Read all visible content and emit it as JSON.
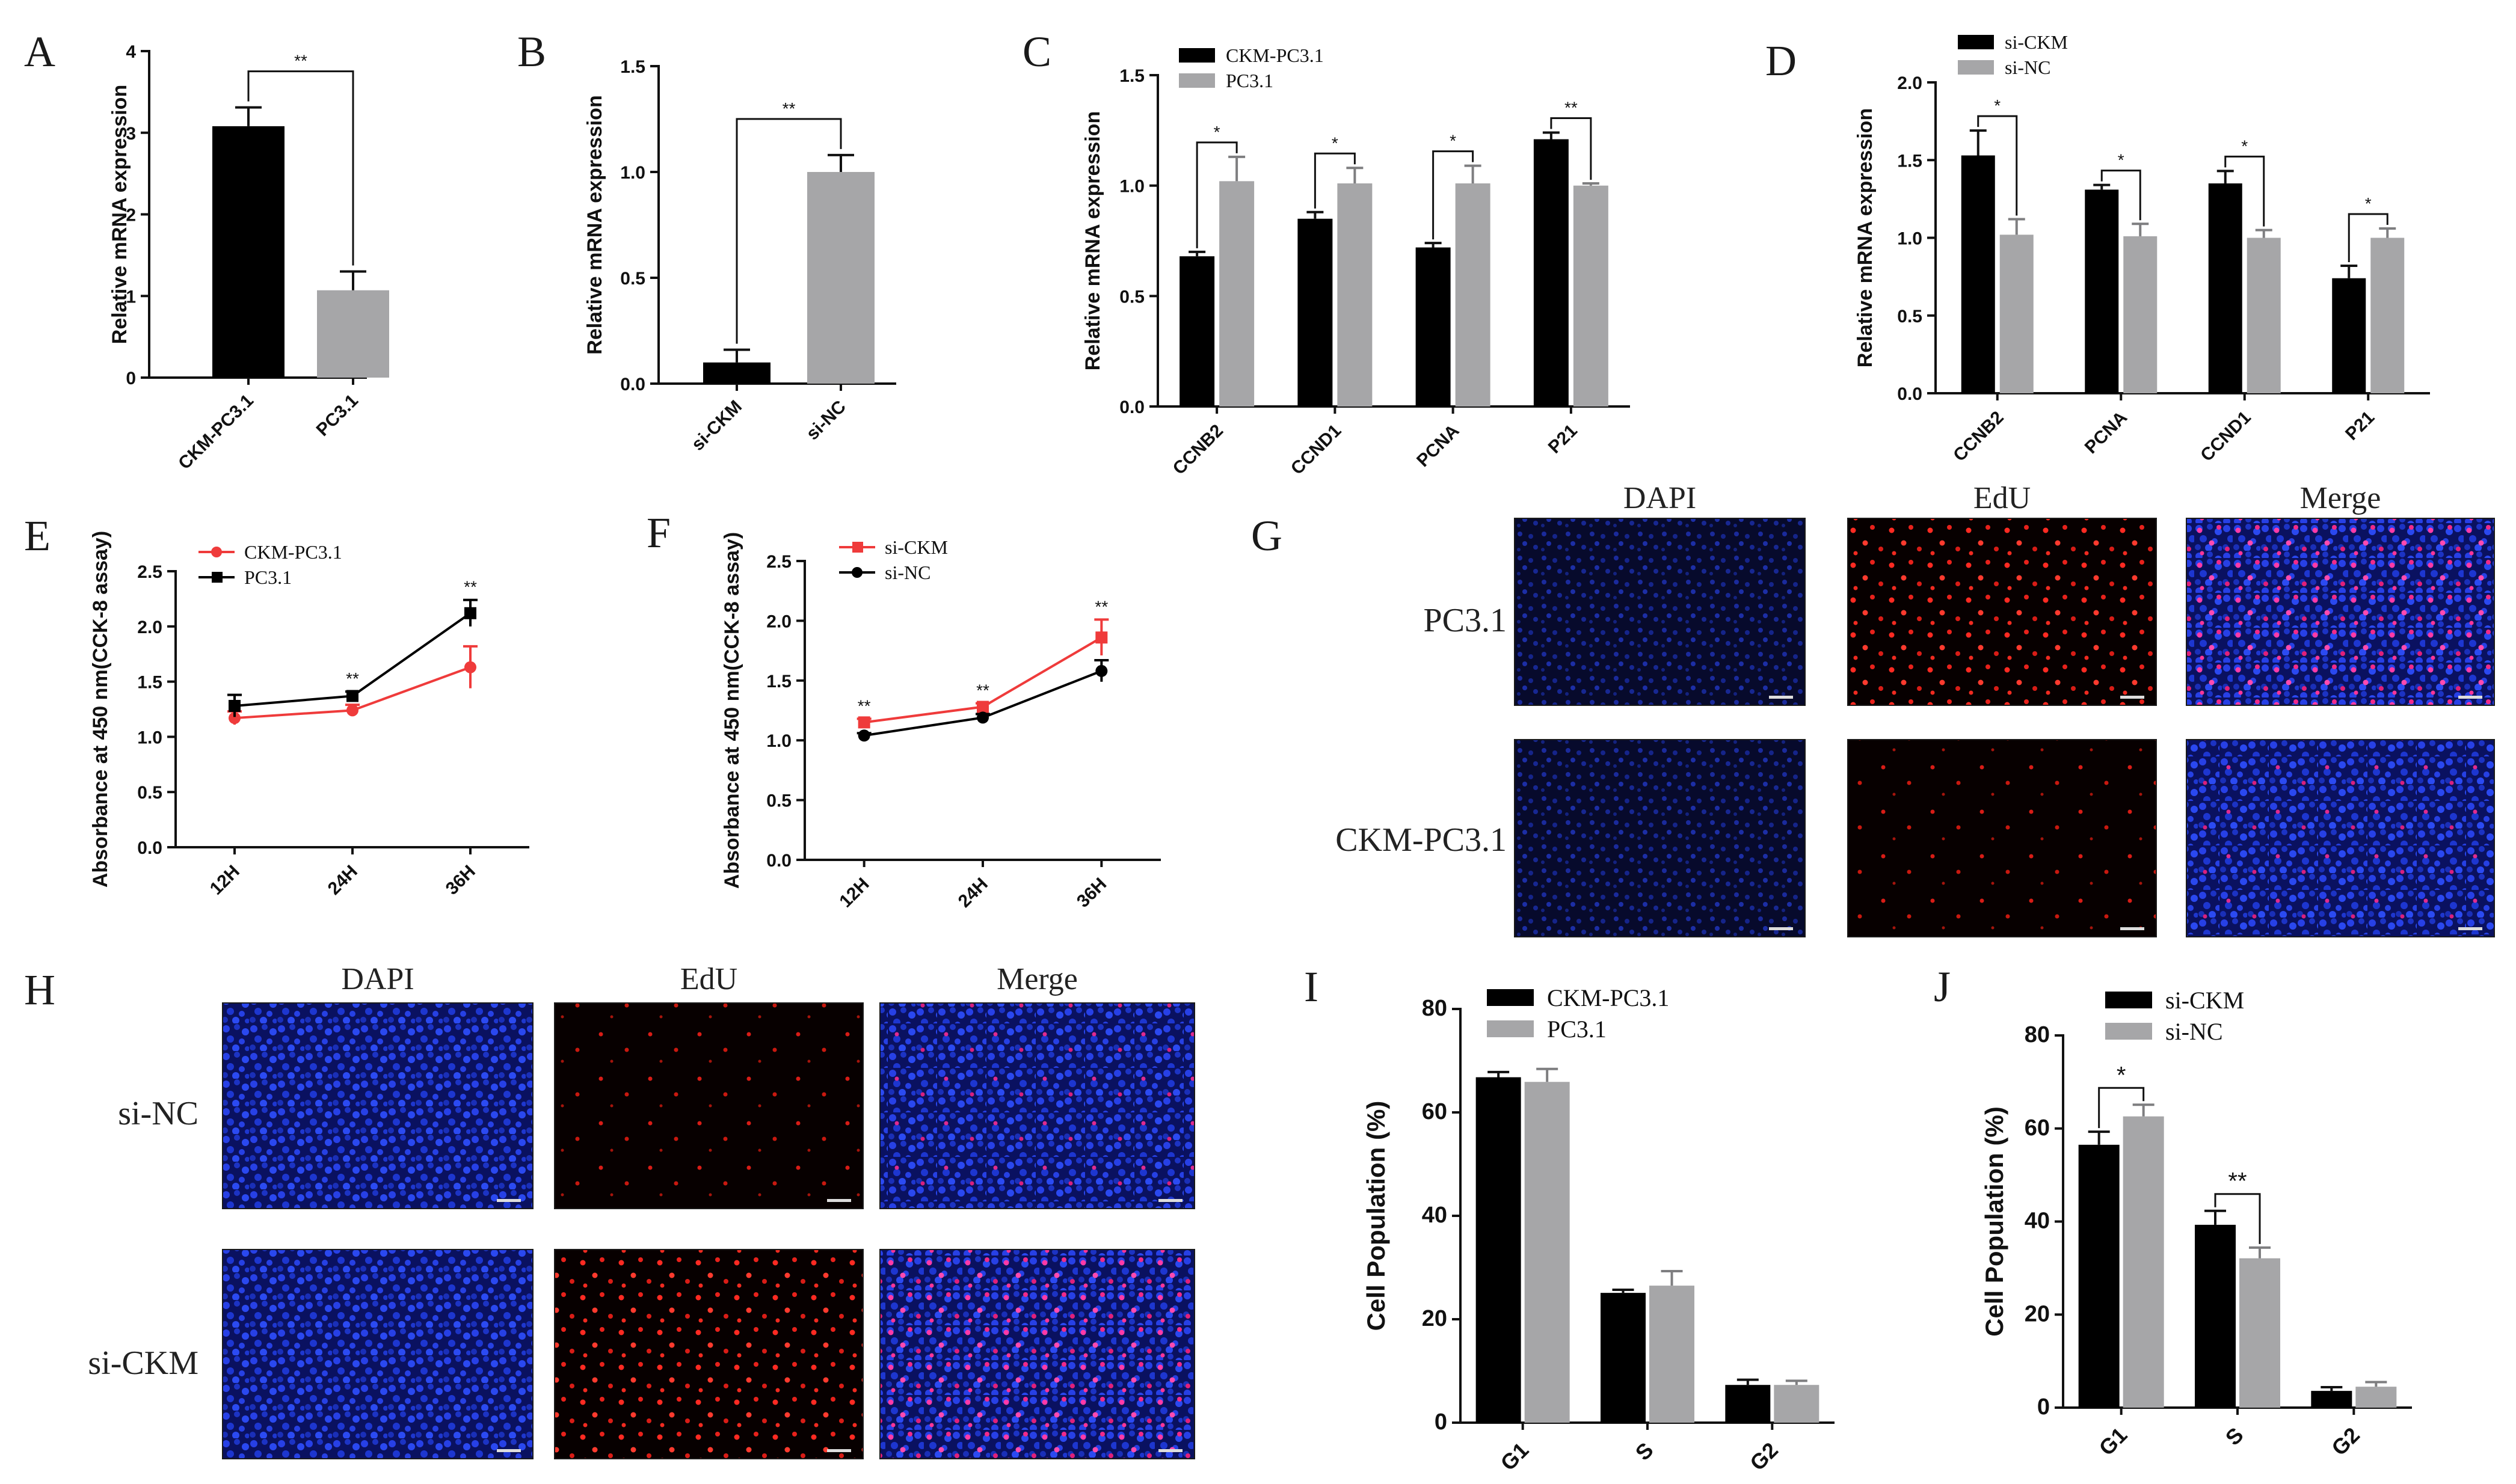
{
  "colors": {
    "black": "#000000",
    "gray": "#a6a6a8",
    "red": "#ef3b3b",
    "dapi": "#1f3ad8",
    "edu": "#e0201c",
    "panelbg": "#0a0a14"
  },
  "chart_data": [
    {
      "id": "A",
      "panel_label": "A",
      "type": "bar",
      "ylabel": "Relative mRNA expression",
      "ylim": [
        0,
        4
      ],
      "yticks": [
        "0",
        "1",
        "2",
        "3",
        "4"
      ],
      "categories": [
        "CKM-PC3.1",
        "PC3.1"
      ],
      "values": [
        3.08,
        1.07
      ],
      "errors": [
        0.23,
        0.23
      ],
      "colors": [
        "black",
        "gray"
      ],
      "significance": [
        {
          "from": 0,
          "to": 1,
          "label": "**"
        }
      ]
    },
    {
      "id": "B",
      "panel_label": "B",
      "type": "bar",
      "ylabel": "Relative mRNA expression",
      "ylim": [
        0,
        1.5
      ],
      "yticks": [
        "0.0",
        "0.5",
        "1.0",
        "1.5"
      ],
      "categories": [
        "si-CKM",
        "si-NC"
      ],
      "values": [
        0.1,
        1.0
      ],
      "errors": [
        0.06,
        0.08
      ],
      "colors": [
        "black",
        "gray"
      ],
      "significance": [
        {
          "from": 0,
          "to": 1,
          "label": "**"
        }
      ]
    },
    {
      "id": "C",
      "panel_label": "C",
      "type": "bar",
      "ylabel": "Relative mRNA expression",
      "ylim": [
        0,
        1.5
      ],
      "yticks": [
        "0.0",
        "0.5",
        "1.0",
        "1.5"
      ],
      "categories": [
        "CCNB2",
        "CCND1",
        "PCNA",
        "P21"
      ],
      "series": [
        {
          "name": "CKM-PC3.1",
          "color": "black",
          "values": [
            0.68,
            0.85,
            0.72,
            1.21
          ],
          "errors": [
            0.02,
            0.03,
            0.02,
            0.03
          ]
        },
        {
          "name": "PC3.1",
          "color": "gray",
          "values": [
            1.02,
            1.01,
            1.01,
            1.0
          ],
          "errors": [
            0.11,
            0.07,
            0.08,
            0.01
          ]
        }
      ],
      "significance": [
        "*",
        "*",
        "*",
        "**"
      ]
    },
    {
      "id": "D",
      "panel_label": "D",
      "type": "bar",
      "ylabel": "Relative mRNA expression",
      "ylim": [
        0,
        2.0
      ],
      "yticks": [
        "0.0",
        "0.5",
        "1.0",
        "1.5",
        "2.0"
      ],
      "categories": [
        "CCNB2",
        "PCNA",
        "CCND1",
        "P21"
      ],
      "series": [
        {
          "name": "si-CKM",
          "color": "black",
          "values": [
            1.53,
            1.31,
            1.35,
            0.74
          ],
          "errors": [
            0.16,
            0.03,
            0.08,
            0.08
          ]
        },
        {
          "name": "si-NC",
          "color": "gray",
          "values": [
            1.02,
            1.01,
            1.0,
            1.0
          ],
          "errors": [
            0.1,
            0.08,
            0.05,
            0.06
          ]
        }
      ],
      "significance": [
        "*",
        "*",
        "*",
        "*"
      ]
    },
    {
      "id": "E",
      "panel_label": "E",
      "type": "line",
      "ylabel": "Absorbance at 450 nm(CCK-8 assay)",
      "ylim": [
        0,
        2.5
      ],
      "yticks": [
        "0.0",
        "0.5",
        "1.0",
        "1.5",
        "2.0",
        "2.5"
      ],
      "x": [
        "12H",
        "24H",
        "36H"
      ],
      "series": [
        {
          "name": "CKM-PC3.1",
          "color": "red",
          "marker": "circle",
          "values": [
            1.17,
            1.24,
            1.63
          ],
          "errors": [
            0.06,
            0.05,
            0.19
          ]
        },
        {
          "name": "PC3.1",
          "color": "black",
          "marker": "square",
          "values": [
            1.28,
            1.37,
            2.12
          ],
          "errors": [
            0.1,
            0.04,
            0.12
          ]
        }
      ],
      "significance": [
        "",
        "**",
        "**"
      ]
    },
    {
      "id": "F",
      "panel_label": "F",
      "type": "line",
      "ylabel": "Absorbance at 450 nm(CCK-8 assay)",
      "ylim": [
        0,
        2.5
      ],
      "yticks": [
        "0.0",
        "0.5",
        "1.0",
        "1.5",
        "2.0",
        "2.5"
      ],
      "x": [
        "12H",
        "24H",
        "36H"
      ],
      "series": [
        {
          "name": "si-CKM",
          "color": "red",
          "marker": "square",
          "values": [
            1.15,
            1.28,
            1.86
          ],
          "errors": [
            0.03,
            0.03,
            0.15
          ]
        },
        {
          "name": "si-NC",
          "color": "black",
          "marker": "circle",
          "values": [
            1.04,
            1.19,
            1.58
          ],
          "errors": [
            0.02,
            0.03,
            0.09
          ]
        }
      ],
      "significance": [
        "**",
        "**",
        "**"
      ]
    },
    {
      "id": "I",
      "panel_label": "I",
      "type": "bar",
      "ylabel": "Cell Population (%)",
      "ylim": [
        0,
        80
      ],
      "yticks": [
        "0",
        "20",
        "40",
        "60",
        "80"
      ],
      "categories": [
        "G1",
        "S",
        "G2"
      ],
      "series": [
        {
          "name": "CKM-PC3.1",
          "color": "black",
          "values": [
            66.8,
            25.1,
            7.3
          ],
          "errors": [
            1.0,
            0.6,
            1.0
          ]
        },
        {
          "name": "PC3.1",
          "color": "gray",
          "values": [
            65.9,
            26.5,
            7.3
          ],
          "errors": [
            2.5,
            2.8,
            0.8
          ]
        }
      ],
      "significance": [
        "",
        "",
        ""
      ]
    },
    {
      "id": "J",
      "panel_label": "J",
      "type": "bar",
      "ylabel": "Cell Population (%)",
      "ylim": [
        0,
        80
      ],
      "yticks": [
        "0",
        "20",
        "40",
        "60",
        "80"
      ],
      "categories": [
        "G1",
        "S",
        "G2"
      ],
      "series": [
        {
          "name": "si-CKM",
          "color": "black",
          "values": [
            56.5,
            39.3,
            3.6
          ],
          "errors": [
            2.8,
            3.0,
            0.8
          ]
        },
        {
          "name": "si-NC",
          "color": "gray",
          "values": [
            62.6,
            32.1,
            4.5
          ],
          "errors": [
            2.5,
            2.3,
            1.0
          ]
        }
      ],
      "significance": [
        "*",
        "**",
        ""
      ]
    }
  ],
  "micrographs": [
    {
      "id": "G",
      "panel_label": "G",
      "columns": [
        "DAPI",
        "EdU",
        "Merge"
      ],
      "rows": [
        {
          "label": "PC3.1",
          "edu_density": "high"
        },
        {
          "label": "CKM-PC3.1",
          "edu_density": "low"
        }
      ]
    },
    {
      "id": "H",
      "panel_label": "H",
      "columns": [
        "DAPI",
        "EdU",
        "Merge"
      ],
      "rows": [
        {
          "label": "si-NC",
          "edu_density": "low"
        },
        {
          "label": "si-CKM",
          "edu_density": "high"
        }
      ]
    }
  ]
}
